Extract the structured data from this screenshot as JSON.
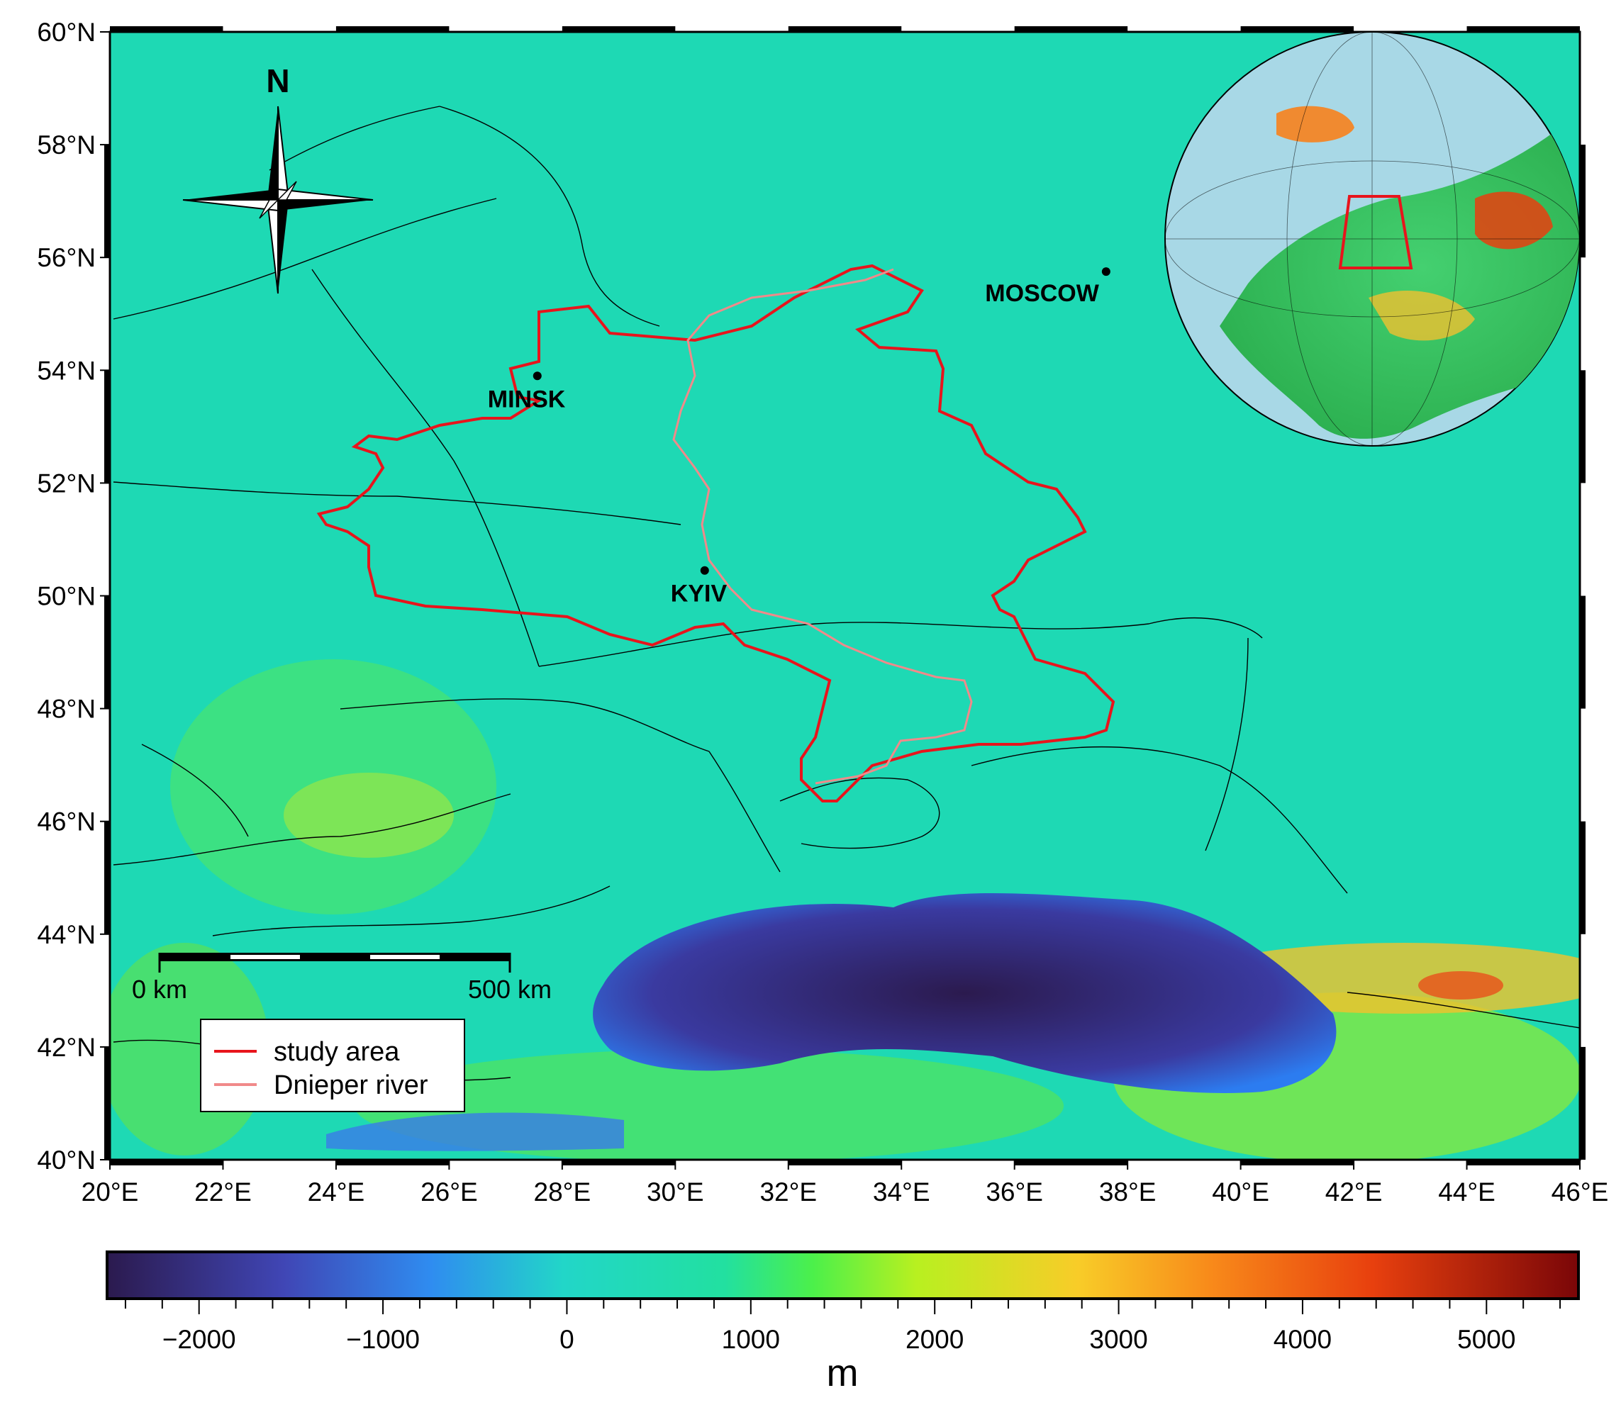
{
  "map": {
    "lon_range": [
      20,
      46
    ],
    "lat_range": [
      40,
      60
    ],
    "lon_ticks": [
      "20°E",
      "22°E",
      "24°E",
      "26°E",
      "28°E",
      "30°E",
      "32°E",
      "34°E",
      "36°E",
      "38°E",
      "40°E",
      "42°E",
      "44°E",
      "46°E"
    ],
    "lat_ticks": [
      "40°N",
      "42°N",
      "44°N",
      "46°N",
      "48°N",
      "50°N",
      "52°N",
      "54°N",
      "56°N",
      "58°N",
      "60°N"
    ],
    "cities": [
      {
        "name": "MINSK",
        "lon": 27.56,
        "lat": 53.9
      },
      {
        "name": "KYIV",
        "lon": 30.52,
        "lat": 50.45
      },
      {
        "name": "MOSCOW",
        "lon": 37.62,
        "lat": 55.75
      }
    ],
    "north_arrow_label": "N",
    "scale_bar": {
      "start_label": "0 km",
      "end_label": "500 km"
    },
    "legend": {
      "items": [
        {
          "label": "study area",
          "color": "#e8141c"
        },
        {
          "label": "Dnieper river",
          "color": "#f08a8a"
        }
      ]
    }
  },
  "colorbar": {
    "ticks": [
      "−2000",
      "−1000",
      "0",
      "1000",
      "2000",
      "3000",
      "4000",
      "5000"
    ],
    "range": [
      -2500,
      5500
    ],
    "unit": "m",
    "colors": [
      "#2b1a4e",
      "#4046b5",
      "#2f8cf0",
      "#22d6c8",
      "#22e0a0",
      "#4cf04a",
      "#b8f020",
      "#f8cc28",
      "#f88a1a",
      "#e8400e",
      "#7a0608"
    ]
  }
}
